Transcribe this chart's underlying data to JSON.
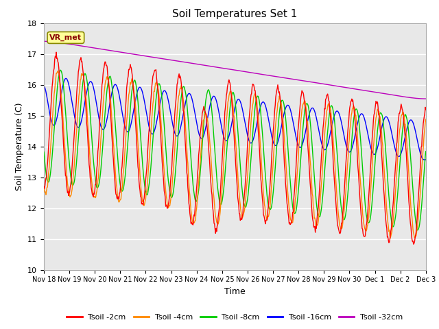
{
  "title": "Soil Temperatures Set 1",
  "xlabel": "Time",
  "ylabel": "Soil Temperature (C)",
  "ylim": [
    10.0,
    18.0
  ],
  "yticks": [
    10.0,
    11.0,
    12.0,
    13.0,
    14.0,
    15.0,
    16.0,
    17.0,
    18.0
  ],
  "xtick_labels": [
    "Nov 18",
    "Nov 19",
    "Nov 20",
    "Nov 21",
    "Nov 22",
    "Nov 23",
    "Nov 24",
    "Nov 25",
    "Nov 26",
    "Nov 27",
    "Nov 28",
    "Nov 29",
    "Nov 30",
    "Dec 1",
    "Dec 2",
    "Dec 3"
  ],
  "legend_labels": [
    "Tsoil -2cm",
    "Tsoil -4cm",
    "Tsoil -8cm",
    "Tsoil -16cm",
    "Tsoil -32cm"
  ],
  "line_colors": [
    "#ff0000",
    "#ff8800",
    "#00cc00",
    "#0000ff",
    "#bb00bb"
  ],
  "annotation_text": "VR_met",
  "annotation_box_color": "#ffff99",
  "annotation_box_edge": "#888800",
  "plot_bg_color": "#e8e8e8",
  "num_days": 15.5,
  "points_per_day": 48
}
